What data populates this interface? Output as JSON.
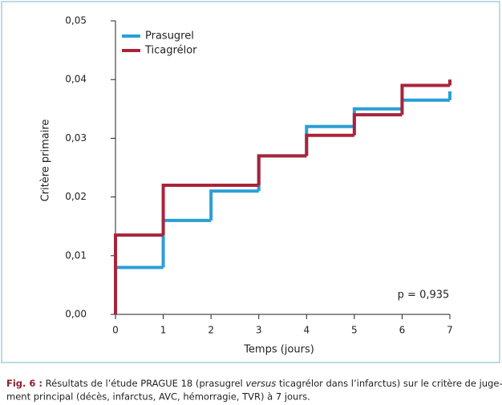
{
  "chart_data": {
    "type": "step",
    "x_label": "Temps (jours)",
    "y_label": "Critère primaire",
    "annotation": "p = 0,935",
    "x": [
      0,
      1,
      2,
      3,
      4,
      5,
      6,
      7
    ],
    "series": [
      {
        "name": "Prasugrel",
        "color": "#2a9fd6",
        "values": [
          0.008,
          0.016,
          0.021,
          0.027,
          0.032,
          0.035,
          0.0365,
          0.038
        ]
      },
      {
        "name": "Ticagrélor",
        "color": "#a8243a",
        "values": [
          0.0135,
          0.022,
          0.022,
          0.027,
          0.0305,
          0.034,
          0.039,
          0.04
        ]
      }
    ],
    "xlim": [
      0,
      7
    ],
    "xticks": [
      0,
      1,
      2,
      3,
      4,
      5,
      6,
      7
    ],
    "ylim": [
      0,
      0.05
    ],
    "yticks": [
      {
        "value": 0,
        "label": "0,00"
      },
      {
        "value": 0.01,
        "label": "0,01"
      },
      {
        "value": 0.02,
        "label": "0,02"
      },
      {
        "value": 0.03,
        "label": "0,03"
      },
      {
        "value": 0.04,
        "label": "0,04"
      },
      {
        "value": 0.05,
        "label": "0,05"
      }
    ],
    "legend": "upper left"
  },
  "caption": {
    "label": "Fig. 6 :",
    "parts": [
      " Résultats de l’étude PRAGUE 18 (prasugrel ",
      "versus",
      " ticagrélor dans l’infarctus) sur le critère de juge-"
    ],
    "line2": "ment principal (décès, infarctus, AVC, hémorragie, TVR) à 7 jours."
  }
}
